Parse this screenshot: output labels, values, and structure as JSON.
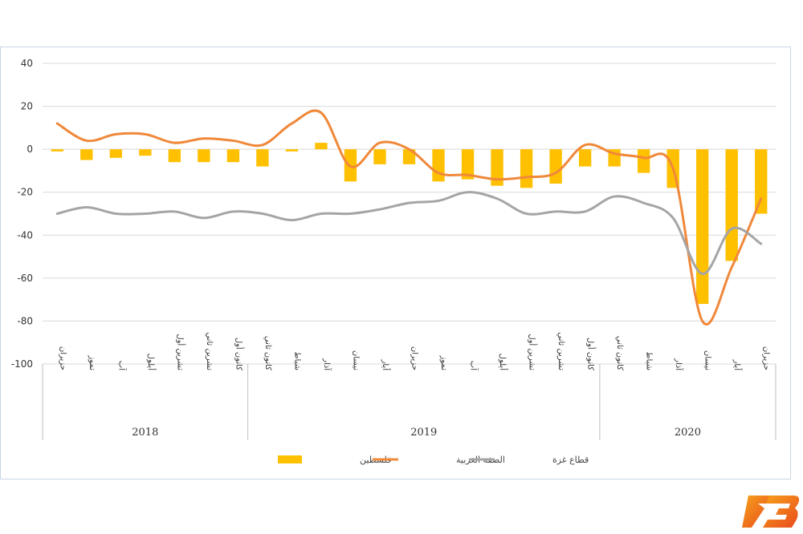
{
  "chart_data": {
    "type": "bar",
    "categories": [
      "حزيران",
      "تموز",
      "آب",
      "أيلول",
      "تشرين أول",
      "تشرين ثاني",
      "كانون أول",
      "كانون ثاني",
      "شباط",
      "آذار",
      "نيسان",
      "أيار",
      "حزيران",
      "تموز",
      "آب",
      "أيلول",
      "تشرين أول",
      "تشرين ثاني",
      "كانون أول",
      "كانون ثاني",
      "شباط",
      "آذار",
      "نيسان",
      "أيار",
      "حزيران"
    ],
    "groups": [
      {
        "label": "2018",
        "start": 0,
        "end": 6
      },
      {
        "label": "2019",
        "start": 7,
        "end": 18
      },
      {
        "label": "2020",
        "start": 19,
        "end": 24
      }
    ],
    "series": [
      {
        "name": "فلسطين",
        "kind": "bar",
        "color": "#FFC000",
        "values": [
          -1,
          -5,
          -4,
          -3,
          -6,
          -6,
          -6,
          -8,
          -1,
          3,
          -15,
          -7,
          -7,
          -15,
          -14,
          -17,
          -18,
          -16,
          -8,
          -8,
          -11,
          -18,
          -72,
          -52,
          -30
        ]
      },
      {
        "name": "الضفة الغربية",
        "kind": "line",
        "color": "#F0883A",
        "values": [
          12,
          4,
          7,
          7,
          3,
          5,
          4,
          2,
          12,
          17,
          -8,
          3,
          0,
          -11,
          -12,
          -14,
          -13,
          -11,
          2,
          -2,
          -4,
          -9,
          -80,
          -55,
          -23
        ]
      },
      {
        "name": "قطاع غزة",
        "kind": "line",
        "color": "#A5A5A5",
        "values": [
          -30,
          -27,
          -30,
          -30,
          -29,
          -32,
          -29,
          -30,
          -33,
          -30,
          -30,
          -28,
          -25,
          -24,
          -20,
          -23,
          -30,
          -29,
          -29,
          -22,
          -25,
          -32,
          -58,
          -37,
          -44
        ]
      }
    ],
    "ylim": [
      -100,
      40
    ],
    "yticks": [
      40,
      20,
      0,
      -20,
      -40,
      -60,
      -80,
      -100
    ],
    "grid": true,
    "legend_position": "bottom",
    "title": "",
    "xlabel": "",
    "ylabel": ""
  },
  "logo": {
    "name": "brand-logo",
    "colors": [
      "#E8491D",
      "#F7A21B"
    ]
  }
}
